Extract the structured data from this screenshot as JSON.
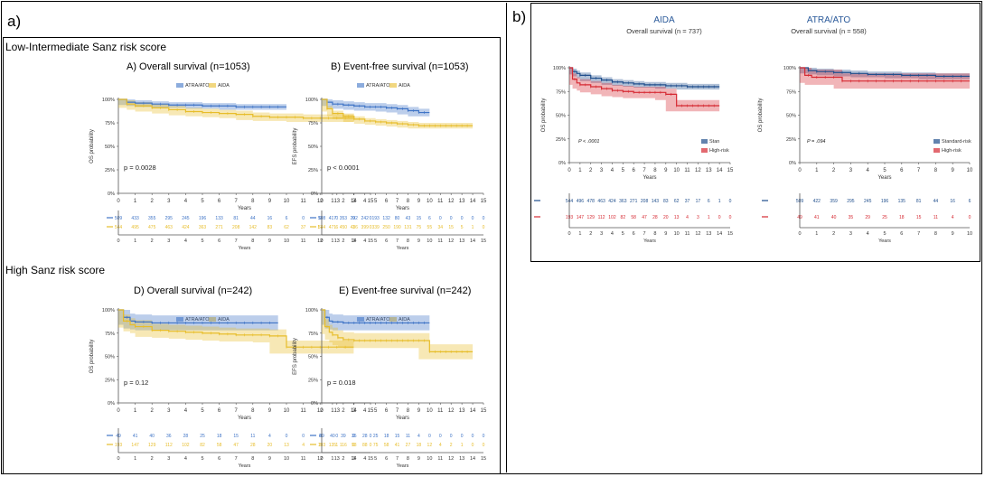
{
  "labels": {
    "panel_a": "a)",
    "panel_b": "b)",
    "section_low": "Low-Intermediate Sanz risk score",
    "section_high": "High Sanz risk score"
  },
  "colors": {
    "blue": "#3F74C6",
    "yellow": "#E7BD2B",
    "navy": "#1F4E8C",
    "red": "#D62A33"
  },
  "chart_data": [
    {
      "id": "A",
      "type": "line",
      "title": "A) Overall survival (n=1053)",
      "xlabel": "Years",
      "ylabel": "OS probability",
      "xlim": [
        0,
        15
      ],
      "ylim": [
        0,
        100
      ],
      "xticks": [
        "0",
        "1",
        "2",
        "3",
        "4",
        "5",
        "6",
        "7",
        "8",
        "9",
        "10",
        "11",
        "12",
        "13",
        "14",
        "15"
      ],
      "yticks": [
        "0%",
        "25%",
        "50%",
        "75%",
        "100%"
      ],
      "legend": [
        "ATRA/ATO",
        "AIDA"
      ],
      "legend_position": "top",
      "pvalue": "p = 0.0028",
      "series": [
        {
          "name": "ATRA/ATO",
          "color": "blue",
          "band": 3,
          "x": [
            0,
            0.5,
            1,
            2,
            3,
            4,
            5,
            6,
            7,
            8,
            9,
            10
          ],
          "y": [
            100,
            97,
            96,
            95,
            94,
            94,
            93,
            93,
            92,
            92,
            92,
            92
          ]
        },
        {
          "name": "AIDA",
          "color": "yellow",
          "band": 4,
          "x": [
            0,
            0.5,
            1,
            2,
            3,
            4,
            5,
            6,
            7,
            8,
            9,
            10,
            11,
            12,
            13,
            14
          ],
          "y": [
            100,
            95,
            93,
            91,
            89,
            87,
            86,
            85,
            84,
            82,
            81,
            81,
            80,
            80,
            80,
            80
          ]
        }
      ],
      "risk_table": [
        {
          "color": "blue",
          "values": [
            "509",
            "433",
            "355",
            "295",
            "245",
            "196",
            "133",
            "81",
            "44",
            "16",
            "6",
            "0",
            "0",
            "0",
            "0",
            "0"
          ]
        },
        {
          "color": "yellow",
          "values": [
            "544",
            "495",
            "475",
            "463",
            "424",
            "363",
            "271",
            "208",
            "142",
            "83",
            "62",
            "37",
            "17",
            "6",
            "1",
            "0"
          ]
        }
      ]
    },
    {
      "id": "B",
      "type": "line",
      "title": "B) Event-free survival (n=1053)",
      "xlabel": "Years",
      "ylabel": "EFS probability",
      "xlim": [
        0,
        15
      ],
      "ylim": [
        0,
        100
      ],
      "xticks": [
        "0",
        "1",
        "2",
        "3",
        "4",
        "5",
        "6",
        "7",
        "8",
        "9",
        "10",
        "11",
        "12",
        "13",
        "14",
        "15"
      ],
      "yticks": [
        "0%",
        "25%",
        "50%",
        "75%",
        "100%"
      ],
      "legend": [
        "ATRA/ATO",
        "AIDA"
      ],
      "legend_position": "top",
      "pvalue": "p < 0.0001",
      "series": [
        {
          "name": "ATRA/ATO",
          "color": "blue",
          "band": 4,
          "x": [
            0,
            0.5,
            1,
            2,
            3,
            4,
            5,
            6,
            7,
            8,
            9,
            10
          ],
          "y": [
            100,
            97,
            95,
            94,
            93,
            92,
            92,
            91,
            90,
            88,
            86,
            86
          ]
        },
        {
          "name": "AIDA",
          "color": "yellow",
          "band": 3,
          "x": [
            0,
            0.5,
            1,
            2,
            3,
            4,
            5,
            6,
            7,
            8,
            9,
            10,
            11,
            12,
            13,
            14
          ],
          "y": [
            100,
            90,
            85,
            82,
            79,
            77,
            76,
            75,
            74,
            73,
            72,
            72,
            72,
            72,
            72,
            72
          ]
        }
      ],
      "risk_table": [
        {
          "color": "blue",
          "values": [
            "508",
            "417",
            "353",
            "292",
            "242",
            "193",
            "132",
            "80",
            "43",
            "15",
            "6",
            "0",
            "0",
            "0",
            "0",
            "0"
          ]
        },
        {
          "color": "yellow",
          "values": [
            "544",
            "471",
            "450",
            "436",
            "399",
            "339",
            "250",
            "190",
            "131",
            "75",
            "55",
            "34",
            "15",
            "5",
            "1",
            "0"
          ]
        }
      ]
    },
    {
      "id": "D",
      "type": "line",
      "title": "D) Overall survival (n=242)",
      "xlabel": "Years",
      "ylabel": "OS probability",
      "xlim": [
        0,
        15
      ],
      "ylim": [
        0,
        100
      ],
      "xticks": [
        "0",
        "1",
        "2",
        "3",
        "4",
        "5",
        "6",
        "7",
        "8",
        "9",
        "10",
        "11",
        "12",
        "13",
        "14",
        "15"
      ],
      "yticks": [
        "0%",
        "25%",
        "50%",
        "75%",
        "100%"
      ],
      "legend": [
        "ATRA/ATO",
        "AIDA"
      ],
      "legend_position": "top",
      "pvalue": "p = 0.12",
      "series": [
        {
          "name": "ATRA/ATO",
          "color": "blue",
          "band": 8,
          "x": [
            0,
            0.3,
            0.7,
            1,
            2,
            3,
            4,
            5,
            6,
            7,
            8,
            9,
            9.5
          ],
          "y": [
            100,
            92,
            88,
            87,
            86,
            86,
            86,
            86,
            86,
            86,
            86,
            86,
            86
          ]
        },
        {
          "name": "AIDA",
          "color": "yellow",
          "band": 7,
          "x": [
            0,
            0.3,
            0.7,
            1,
            2,
            3,
            4,
            5,
            6,
            7,
            8,
            9,
            10,
            11,
            12,
            13,
            14
          ],
          "y": [
            100,
            88,
            84,
            82,
            78,
            77,
            76,
            75,
            74,
            73,
            73,
            72,
            60,
            60,
            60,
            60,
            60
          ]
        }
      ],
      "risk_table": [
        {
          "color": "blue",
          "values": [
            "49",
            "41",
            "40",
            "36",
            "28",
            "25",
            "18",
            "15",
            "11",
            "4",
            "0",
            "0",
            "0",
            "0",
            "0",
            "0"
          ]
        },
        {
          "color": "yellow",
          "values": [
            "193",
            "147",
            "129",
            "112",
            "102",
            "82",
            "58",
            "47",
            "28",
            "20",
            "13",
            "4",
            "3",
            "1",
            "0",
            "0"
          ]
        }
      ]
    },
    {
      "id": "E",
      "type": "line",
      "title": "E) Event-free survival (n=242)",
      "xlabel": "Years",
      "ylabel": "EFS probability",
      "xlim": [
        0,
        15
      ],
      "ylim": [
        0,
        100
      ],
      "xticks": [
        "0",
        "1",
        "2",
        "3",
        "4",
        "5",
        "6",
        "7",
        "8",
        "9",
        "10",
        "11",
        "12",
        "13",
        "14",
        "15"
      ],
      "yticks": [
        "0%",
        "25%",
        "50%",
        "75%",
        "100%"
      ],
      "legend": [
        "ATRA/ATO",
        "AIDA"
      ],
      "legend_position": "top",
      "pvalue": "p = 0.018",
      "series": [
        {
          "name": "ATRA/ATO",
          "color": "blue",
          "band": 8,
          "x": [
            0,
            0.3,
            0.7,
            1,
            2,
            3,
            4,
            5,
            6,
            7,
            8,
            9,
            10
          ],
          "y": [
            100,
            92,
            88,
            87,
            86,
            86,
            86,
            86,
            86,
            86,
            86,
            86,
            86
          ]
        },
        {
          "name": "AIDA",
          "color": "yellow",
          "band": 8,
          "x": [
            0,
            0.3,
            0.7,
            1,
            1.5,
            2,
            3,
            4,
            5,
            6,
            7,
            8,
            9,
            10,
            11,
            12,
            13,
            14
          ],
          "y": [
            100,
            82,
            76,
            73,
            70,
            68,
            67,
            67,
            67,
            67,
            67,
            67,
            67,
            55,
            55,
            55,
            55,
            55
          ]
        }
      ],
      "risk_table": [
        {
          "color": "blue",
          "values": [
            "49",
            "40",
            "39",
            "35",
            "28",
            "25",
            "18",
            "15",
            "11",
            "4",
            "0",
            "0",
            "0",
            "0",
            "0",
            "0"
          ]
        },
        {
          "color": "yellow",
          "values": [
            "193",
            "135",
            "116",
            "93",
            "88",
            "75",
            "58",
            "41",
            "27",
            "18",
            "12",
            "4",
            "2",
            "1",
            "0",
            "0"
          ]
        }
      ]
    },
    {
      "id": "AIDA",
      "type": "line",
      "title": "AIDA",
      "subtitle": "Overall survival (n = 737)",
      "xlabel": "Years",
      "ylabel": "OS probability",
      "xlim": [
        0,
        15
      ],
      "ylim": [
        0,
        100
      ],
      "xticks": [
        "0",
        "1",
        "2",
        "3",
        "4",
        "5",
        "6",
        "7",
        "8",
        "9",
        "10",
        "11",
        "12",
        "13",
        "14",
        "15"
      ],
      "yticks": [
        "0%",
        "25%",
        "50%",
        "75%",
        "100%"
      ],
      "legend": [
        "Stan",
        "High-risk"
      ],
      "legend_position": "bottom-right",
      "pvalue": "P < .0001",
      "series": [
        {
          "name": "Stan",
          "color": "navy",
          "band": 3,
          "x": [
            0,
            0.3,
            0.7,
            1,
            2,
            3,
            4,
            5,
            6,
            7,
            8,
            9,
            10,
            11,
            12,
            13,
            14
          ],
          "y": [
            100,
            96,
            94,
            92,
            89,
            87,
            85,
            84,
            83,
            82,
            82,
            81,
            81,
            80,
            80,
            80,
            80
          ]
        },
        {
          "name": "High-risk",
          "color": "red",
          "band": 6,
          "x": [
            0,
            0.3,
            0.7,
            1,
            2,
            3,
            4,
            5,
            6,
            7,
            8,
            9,
            10,
            11,
            12,
            13,
            14
          ],
          "y": [
            100,
            88,
            84,
            82,
            80,
            78,
            76,
            75,
            74,
            74,
            74,
            72,
            60,
            60,
            60,
            60,
            60
          ]
        }
      ],
      "risk_table": [
        {
          "color": "navy",
          "values": [
            "544",
            "496",
            "478",
            "463",
            "424",
            "363",
            "271",
            "208",
            "143",
            "83",
            "62",
            "37",
            "17",
            "6",
            "1",
            "0"
          ]
        },
        {
          "color": "red",
          "values": [
            "193",
            "147",
            "129",
            "112",
            "102",
            "82",
            "58",
            "47",
            "28",
            "20",
            "13",
            "4",
            "3",
            "1",
            "0",
            "0"
          ]
        }
      ]
    },
    {
      "id": "ATRA",
      "type": "line",
      "title": "ATRA/ATO",
      "subtitle": "Overall survival (n = 558)",
      "xlabel": "Years",
      "ylabel": "OS probability",
      "xlim": [
        0,
        10
      ],
      "ylim": [
        0,
        100
      ],
      "xticks": [
        "0",
        "1",
        "2",
        "3",
        "4",
        "5",
        "6",
        "7",
        "8",
        "9",
        "10"
      ],
      "yticks": [
        "0%",
        "25%",
        "50%",
        "75%",
        "100%"
      ],
      "legend": [
        "Standard-risk",
        "High-risk"
      ],
      "legend_position": "bottom-right",
      "pvalue": "P = .094",
      "series": [
        {
          "name": "Standard-risk",
          "color": "navy",
          "band": 3,
          "x": [
            0,
            0.5,
            1,
            2,
            3,
            4,
            5,
            6,
            7,
            8,
            9,
            10
          ],
          "y": [
            100,
            97,
            96,
            95,
            94,
            93,
            93,
            92,
            92,
            91,
            91,
            91
          ]
        },
        {
          "name": "High-risk",
          "color": "red",
          "band": 8,
          "x": [
            0,
            0.3,
            0.7,
            1,
            2,
            2.5,
            3,
            4,
            5,
            6,
            7,
            8,
            9,
            10
          ],
          "y": [
            100,
            92,
            90,
            90,
            90,
            86,
            86,
            86,
            86,
            86,
            86,
            86,
            86,
            86
          ]
        }
      ],
      "risk_table": [
        {
          "color": "navy",
          "values": [
            "509",
            "422",
            "359",
            "295",
            "245",
            "196",
            "135",
            "81",
            "44",
            "16",
            "6"
          ]
        },
        {
          "color": "red",
          "values": [
            "49",
            "41",
            "40",
            "35",
            "29",
            "25",
            "18",
            "15",
            "11",
            "4",
            "0"
          ]
        }
      ]
    }
  ]
}
